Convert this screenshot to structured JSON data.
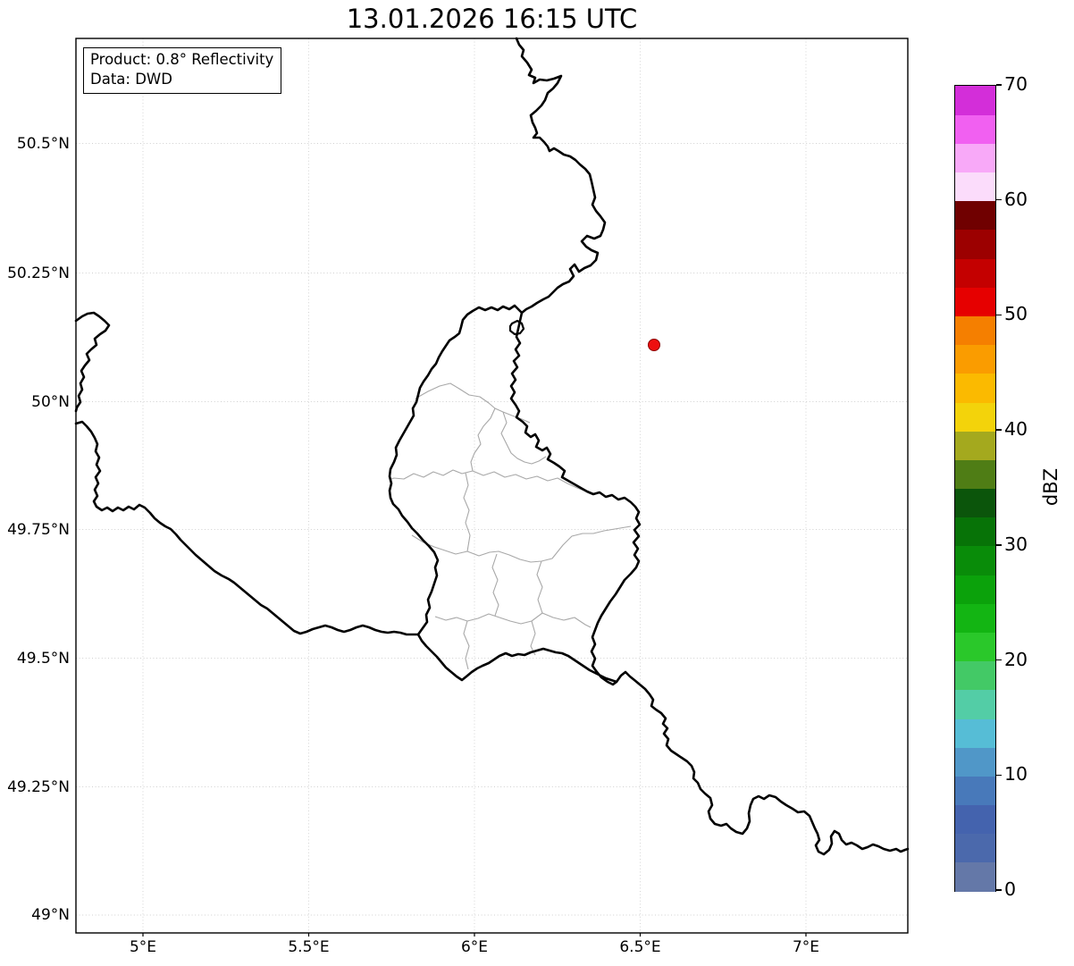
{
  "title": "13.01.2026 16:15 UTC",
  "info_box": {
    "line1": "Product: 0.8° Reflectivity",
    "line2": "Data: DWD"
  },
  "map": {
    "x_axis_labels": [
      "5°E",
      "5.5°E",
      "6°E",
      "6.5°E",
      "7°E"
    ],
    "y_axis_labels": [
      "50.5°N",
      "50.25°N",
      "50°N",
      "49.75°N",
      "49.5°N",
      "49.25°N",
      "49°N"
    ],
    "border_color_national": "#000000",
    "border_color_districts": "#a8a8a8",
    "gridline_color": "#d0d0d0"
  },
  "colorbar": {
    "label": "dBZ",
    "max": 70,
    "min": 0,
    "ticks": [
      {
        "value": 0,
        "label": "0"
      },
      {
        "value": 10,
        "label": "10"
      },
      {
        "value": 20,
        "label": "20"
      },
      {
        "value": 30,
        "label": "30"
      },
      {
        "value": 40,
        "label": "40"
      },
      {
        "value": 50,
        "label": "50"
      },
      {
        "value": 60,
        "label": "60"
      },
      {
        "value": 70,
        "label": "70"
      }
    ],
    "band_step_dbz": 2.5,
    "band_colors_bottom_to_top": [
      "#6478A8",
      "#4B69AC",
      "#4463AE",
      "#4879BA",
      "#5097C8",
      "#56BDD6",
      "#53CDA6",
      "#43C966",
      "#2AC82A",
      "#13B513",
      "#0BA20B",
      "#098C09",
      "#077307",
      "#0B550B",
      "#4F7D15",
      "#A4A91E",
      "#F3D30B",
      "#FBBA00",
      "#FA9C00",
      "#F57F00",
      "#E60000",
      "#C40000",
      "#9C0000",
      "#700000",
      "#FBDCFB",
      "#F8A9F8",
      "#F160F1",
      "#D32ED9"
    ]
  },
  "chart_data": {
    "type": "map",
    "title": "13.01.2026 16:15 UTC",
    "product": "0.8° Reflectivity",
    "data_source": "DWD",
    "x_axis": {
      "ticks_deg_east": [
        5,
        5.5,
        6,
        6.5,
        7
      ],
      "range_deg_east": [
        4.8,
        7.31
      ],
      "gridlines": "dotted"
    },
    "y_axis": {
      "ticks_deg_north": [
        50.5,
        50.25,
        50,
        49.75,
        49.5,
        49.25,
        49
      ],
      "range_deg_north": [
        48.97,
        50.7
      ],
      "gridlines": "dotted"
    },
    "colorbar": {
      "label": "dBZ",
      "range": [
        0,
        70
      ],
      "tick_step": 10,
      "band_step": 2.5,
      "orientation": "vertical",
      "position": "right"
    },
    "markers": [
      {
        "name": "radar-site-marker",
        "lon_deg_east": 6.55,
        "lat_deg_north": 50.11,
        "shape": "circle",
        "color": "#ED0F0F"
      }
    ],
    "geography": {
      "national_borders": "Belgium / Germany / France / Luxembourg (thick black)",
      "district_borders": "Luxembourg cantons (thin gray)"
    },
    "reflectivity_echoes_visible": false
  }
}
